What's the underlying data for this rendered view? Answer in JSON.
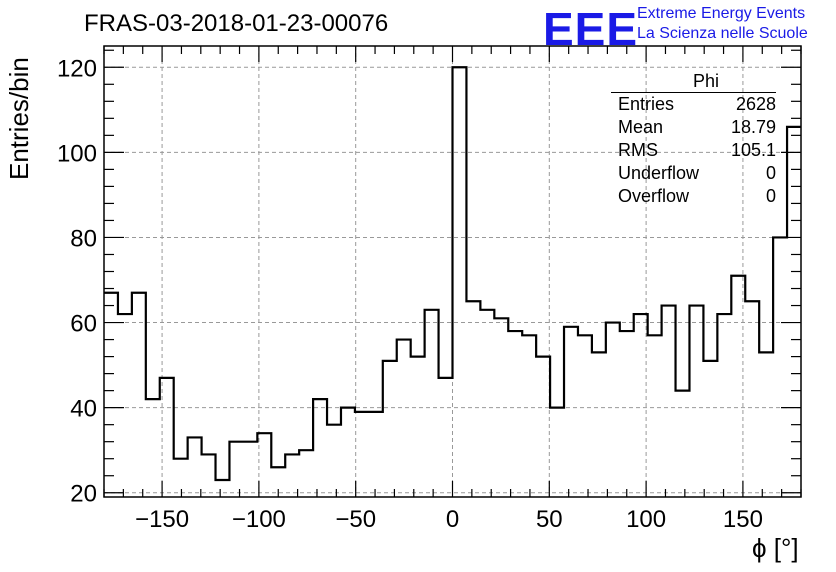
{
  "title": "FRAS-03-2018-01-23-00076",
  "logo": {
    "mark": "EEE",
    "line1": "Extreme Energy Events",
    "line2": "La Scienza nelle Scuole"
  },
  "stats": {
    "name": "Phi",
    "rows": [
      {
        "label": "Entries",
        "value": "2628"
      },
      {
        "label": "Mean",
        "value": "18.79"
      },
      {
        "label": "RMS",
        "value": "105.1"
      },
      {
        "label": "Underflow",
        "value": "0"
      },
      {
        "label": "Overflow",
        "value": "0"
      }
    ]
  },
  "chart_data": {
    "type": "bar",
    "style": "step-histogram",
    "title": "FRAS-03-2018-01-23-00076",
    "xlabel": "ϕ [°]",
    "ylabel": "Entries/bin",
    "xlim": [
      -180,
      180
    ],
    "ylim": [
      19,
      125
    ],
    "bin_width": 7.2,
    "grid": true,
    "x_ticks": [
      -150,
      -100,
      -50,
      0,
      50,
      100,
      150
    ],
    "x_tick_labels": [
      "−150",
      "−100",
      "−50",
      "0",
      "50",
      "100",
      "150"
    ],
    "y_ticks": [
      20,
      40,
      60,
      80,
      100,
      120
    ],
    "y_tick_labels": [
      "20",
      "40",
      "60",
      "80",
      "100",
      "120"
    ],
    "values": [
      67,
      62,
      67,
      42,
      47,
      28,
      33,
      29,
      23,
      32,
      32,
      34,
      26,
      29,
      30,
      42,
      36,
      40,
      39,
      39,
      51,
      56,
      52,
      63,
      47,
      120,
      65,
      63,
      61,
      58,
      57,
      52,
      40,
      59,
      57,
      53,
      60,
      58,
      62,
      57,
      64,
      44,
      64,
      51,
      62,
      71,
      65,
      53,
      80,
      106
    ]
  }
}
